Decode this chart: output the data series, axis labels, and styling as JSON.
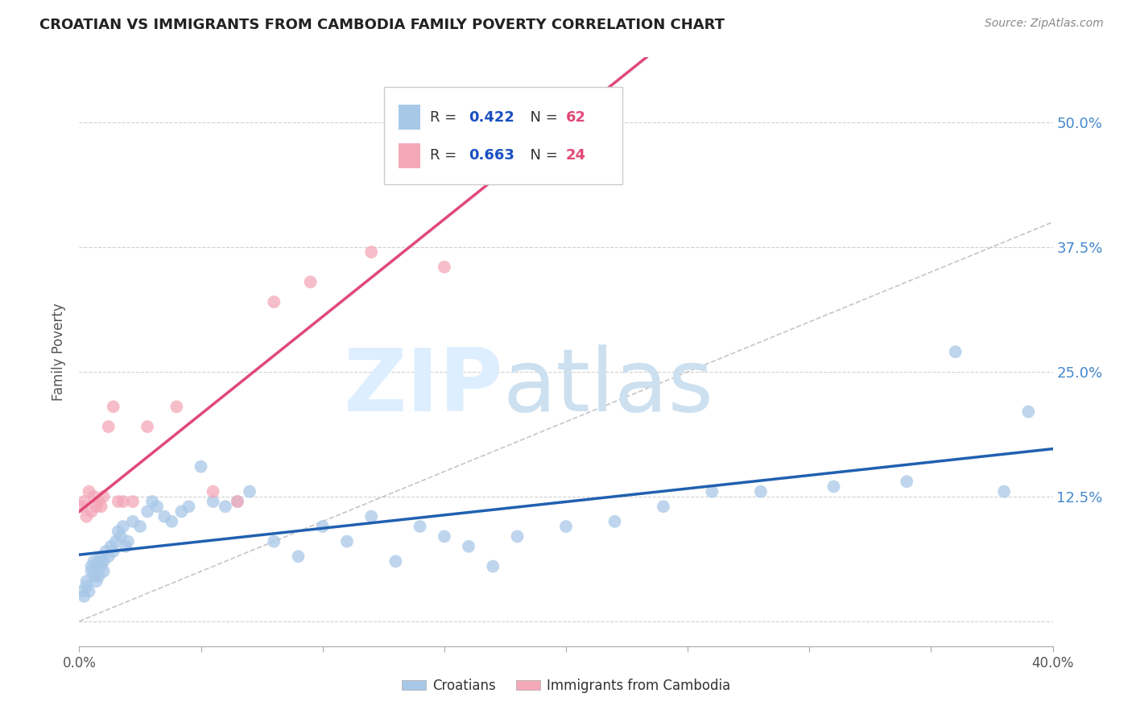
{
  "title": "CROATIAN VS IMMIGRANTS FROM CAMBODIA FAMILY POVERTY CORRELATION CHART",
  "source": "Source: ZipAtlas.com",
  "ylabel": "Family Poverty",
  "ytick_values": [
    0.0,
    0.125,
    0.25,
    0.375,
    0.5
  ],
  "xrange": [
    0,
    0.4
  ],
  "yrange": [
    -0.025,
    0.565
  ],
  "croatian_R": "0.422",
  "croatian_N": "62",
  "cambodia_R": "0.663",
  "cambodia_N": "24",
  "croatian_color": "#a8c8e8",
  "cambodia_color": "#f4a8b8",
  "croatian_line_color": "#2060b0",
  "cambodia_line_color": "#e04878",
  "diagonal_color": "#b8b8b8",
  "legend_R_color": "#1a50c0",
  "legend_N_color": "#e04878",
  "bg_color": "#ffffff",
  "grid_color": "#cccccc",
  "croatian_x": [
    0.001,
    0.002,
    0.003,
    0.003,
    0.004,
    0.005,
    0.005,
    0.006,
    0.006,
    0.007,
    0.007,
    0.008,
    0.008,
    0.009,
    0.009,
    0.01,
    0.01,
    0.011,
    0.012,
    0.013,
    0.014,
    0.015,
    0.016,
    0.017,
    0.018,
    0.019,
    0.02,
    0.022,
    0.025,
    0.028,
    0.03,
    0.032,
    0.035,
    0.038,
    0.042,
    0.045,
    0.05,
    0.055,
    0.06,
    0.065,
    0.07,
    0.08,
    0.09,
    0.1,
    0.11,
    0.12,
    0.13,
    0.14,
    0.15,
    0.16,
    0.17,
    0.18,
    0.2,
    0.22,
    0.24,
    0.26,
    0.28,
    0.31,
    0.34,
    0.36,
    0.38,
    0.39
  ],
  "croatian_y": [
    0.03,
    0.025,
    0.035,
    0.04,
    0.03,
    0.05,
    0.055,
    0.045,
    0.06,
    0.04,
    0.055,
    0.06,
    0.045,
    0.055,
    0.065,
    0.05,
    0.06,
    0.07,
    0.065,
    0.075,
    0.07,
    0.08,
    0.09,
    0.085,
    0.095,
    0.075,
    0.08,
    0.1,
    0.095,
    0.11,
    0.12,
    0.115,
    0.105,
    0.1,
    0.11,
    0.115,
    0.155,
    0.12,
    0.115,
    0.12,
    0.13,
    0.08,
    0.065,
    0.095,
    0.08,
    0.105,
    0.06,
    0.095,
    0.085,
    0.075,
    0.055,
    0.085,
    0.095,
    0.1,
    0.115,
    0.13,
    0.13,
    0.135,
    0.14,
    0.27,
    0.13,
    0.21
  ],
  "cambodia_x": [
    0.001,
    0.002,
    0.003,
    0.004,
    0.005,
    0.006,
    0.007,
    0.008,
    0.009,
    0.01,
    0.012,
    0.014,
    0.016,
    0.018,
    0.022,
    0.028,
    0.04,
    0.055,
    0.065,
    0.08,
    0.095,
    0.12,
    0.15,
    0.16
  ],
  "cambodia_y": [
    0.115,
    0.12,
    0.105,
    0.13,
    0.11,
    0.125,
    0.115,
    0.12,
    0.115,
    0.125,
    0.195,
    0.215,
    0.12,
    0.12,
    0.12,
    0.195,
    0.215,
    0.13,
    0.12,
    0.32,
    0.34,
    0.37,
    0.355,
    0.46
  ]
}
